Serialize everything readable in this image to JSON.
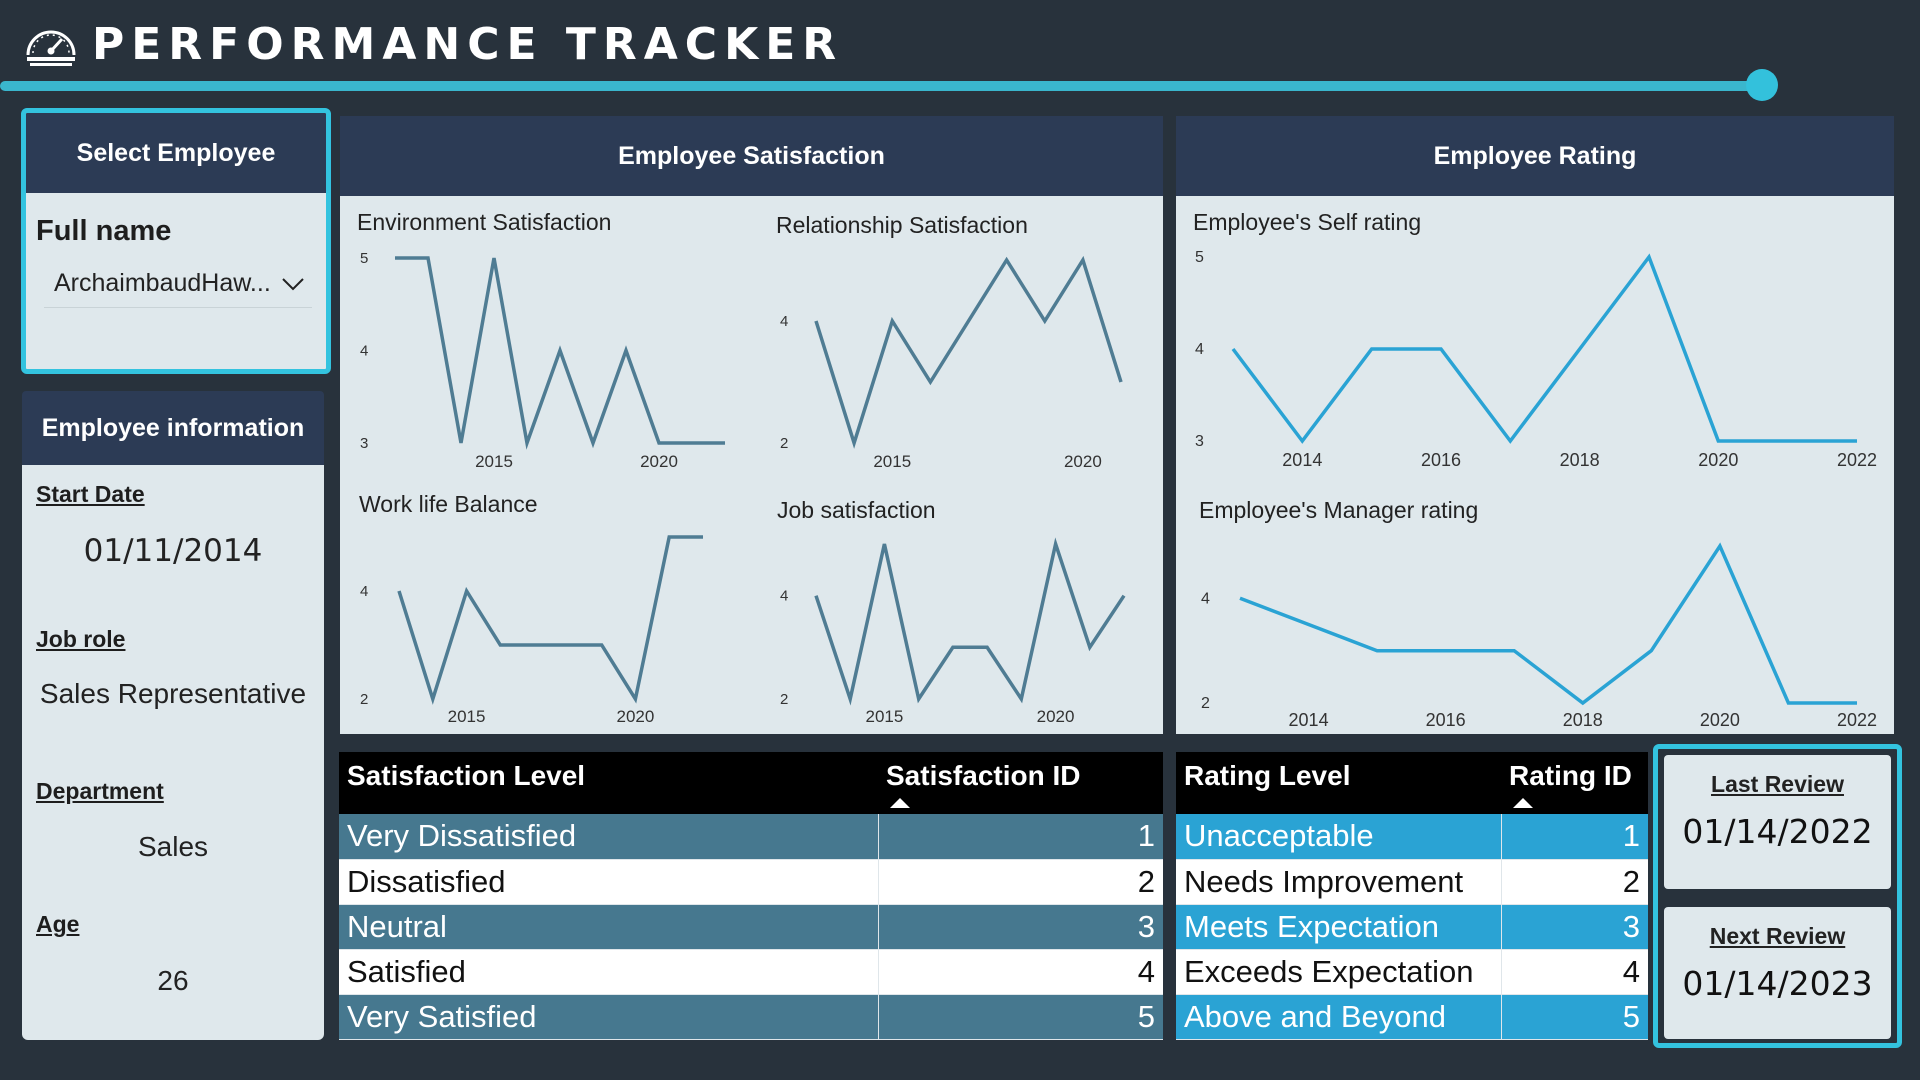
{
  "header": {
    "title": "PERFORMANCE TRACKER",
    "logo_icon": "speedometer-icon"
  },
  "page_progress": 0.82,
  "select_employee": {
    "heading": "Select Employee",
    "field_label": "Full name",
    "selected_value": "ArchaimbaudHaw..."
  },
  "employee_info": {
    "heading": "Employee information",
    "start_date_label": "Start Date",
    "start_date": "01/11/2014",
    "job_role_label": "Job role",
    "job_role": "Sales Representative",
    "department_label": "Department",
    "department": "Sales",
    "age_label": "Age",
    "age": "26"
  },
  "satisfaction_panel": {
    "heading": "Employee Satisfaction"
  },
  "rating_panel": {
    "heading": "Employee Rating"
  },
  "chart_data": [
    {
      "id": "env",
      "type": "line",
      "title": "Environment Satisfaction",
      "x": [
        2012,
        2013,
        2014,
        2015,
        2016,
        2017,
        2018,
        2019,
        2020,
        2021,
        2022
      ],
      "values": [
        5,
        5,
        3,
        5,
        3,
        4,
        3,
        4,
        3,
        3,
        3
      ],
      "x_ticks": [
        "2015",
        "2020"
      ],
      "y_ticks": [
        "5",
        "4",
        "3"
      ],
      "ylim": [
        3,
        5
      ],
      "grid": false,
      "color": "#4f7c93"
    },
    {
      "id": "rel",
      "type": "line",
      "title": "Relationship Satisfaction",
      "x": [
        2013,
        2014,
        2015,
        2016,
        2017,
        2018,
        2019,
        2020,
        2021
      ],
      "values": [
        4,
        2,
        4,
        3,
        4,
        5,
        4,
        5,
        3
      ],
      "x_ticks": [
        "2015",
        "2020"
      ],
      "y_ticks": [
        "4",
        "2"
      ],
      "ylim": [
        2,
        5
      ],
      "grid": false,
      "color": "#4f7c93"
    },
    {
      "id": "wlb",
      "type": "line",
      "title": "Work life Balance",
      "x": [
        2013,
        2014,
        2015,
        2016,
        2017,
        2018,
        2019,
        2020,
        2021,
        2022
      ],
      "values": [
        4,
        2,
        4,
        3,
        3,
        3,
        3,
        2,
        5,
        5
      ],
      "x_ticks": [
        "2015",
        "2020"
      ],
      "y_ticks": [
        "4",
        "2"
      ],
      "ylim": [
        2,
        5
      ],
      "grid": false,
      "color": "#4f7c93"
    },
    {
      "id": "job",
      "type": "line",
      "title": "Job satisfaction",
      "x": [
        2013,
        2014,
        2015,
        2016,
        2017,
        2018,
        2019,
        2020,
        2021,
        2022
      ],
      "values": [
        4,
        2,
        5,
        2,
        3,
        3,
        2,
        5,
        3,
        4
      ],
      "x_ticks": [
        "2015",
        "2020"
      ],
      "y_ticks": [
        "4",
        "2"
      ],
      "ylim": [
        2,
        5
      ],
      "grid": false,
      "color": "#4f7c93"
    },
    {
      "id": "self",
      "type": "line",
      "title": "Employee's Self rating",
      "x": [
        2013,
        2014,
        2015,
        2016,
        2017,
        2018,
        2019,
        2020,
        2021,
        2022
      ],
      "values": [
        4,
        3,
        4,
        4,
        3,
        4,
        5,
        3,
        3,
        3
      ],
      "x_ticks": [
        "2014",
        "2016",
        "2018",
        "2020",
        "2022"
      ],
      "y_ticks": [
        "5",
        "4",
        "3"
      ],
      "ylim": [
        3,
        5
      ],
      "grid": false,
      "color": "#2aa3d4"
    },
    {
      "id": "mgr",
      "type": "line",
      "title": "Employee's Manager rating",
      "x": [
        2013,
        2014,
        2015,
        2016,
        2017,
        2018,
        2019,
        2020,
        2021,
        2022
      ],
      "values": [
        4,
        3.5,
        3,
        3,
        3,
        2,
        3,
        5,
        2,
        2
      ],
      "x_ticks": [
        "2014",
        "2016",
        "2018",
        "2020",
        "2022"
      ],
      "y_ticks": [
        "4",
        "2"
      ],
      "ylim": [
        2,
        5
      ],
      "grid": false,
      "color": "#2aa3d4"
    }
  ],
  "satisfaction_table": {
    "headers": [
      "Satisfaction Level",
      "Satisfaction ID"
    ],
    "rows": [
      [
        "Very Dissatisfied",
        "1"
      ],
      [
        "Dissatisfied",
        "2"
      ],
      [
        "Neutral",
        "3"
      ],
      [
        "Satisfied",
        "4"
      ],
      [
        "Very Satisfied",
        "5"
      ]
    ]
  },
  "rating_table": {
    "headers": [
      "Rating Level",
      "Rating ID"
    ],
    "rows": [
      [
        "Unacceptable",
        "1"
      ],
      [
        "Needs Improvement",
        "2"
      ],
      [
        "Meets Expectation",
        "3"
      ],
      [
        "Exceeds Expectation",
        "4"
      ],
      [
        "Above and Beyond",
        "5"
      ]
    ]
  },
  "reviews": {
    "last_label": "Last Review",
    "last_date": "01/14/2022",
    "next_label": "Next Review",
    "next_date": "01/14/2023"
  },
  "colors": {
    "navy": "#2c3b55",
    "panel": "#dfe8ec",
    "accent": "#33c3df",
    "teal_line": "#4f7c93",
    "blue_line": "#2aa3d4"
  }
}
